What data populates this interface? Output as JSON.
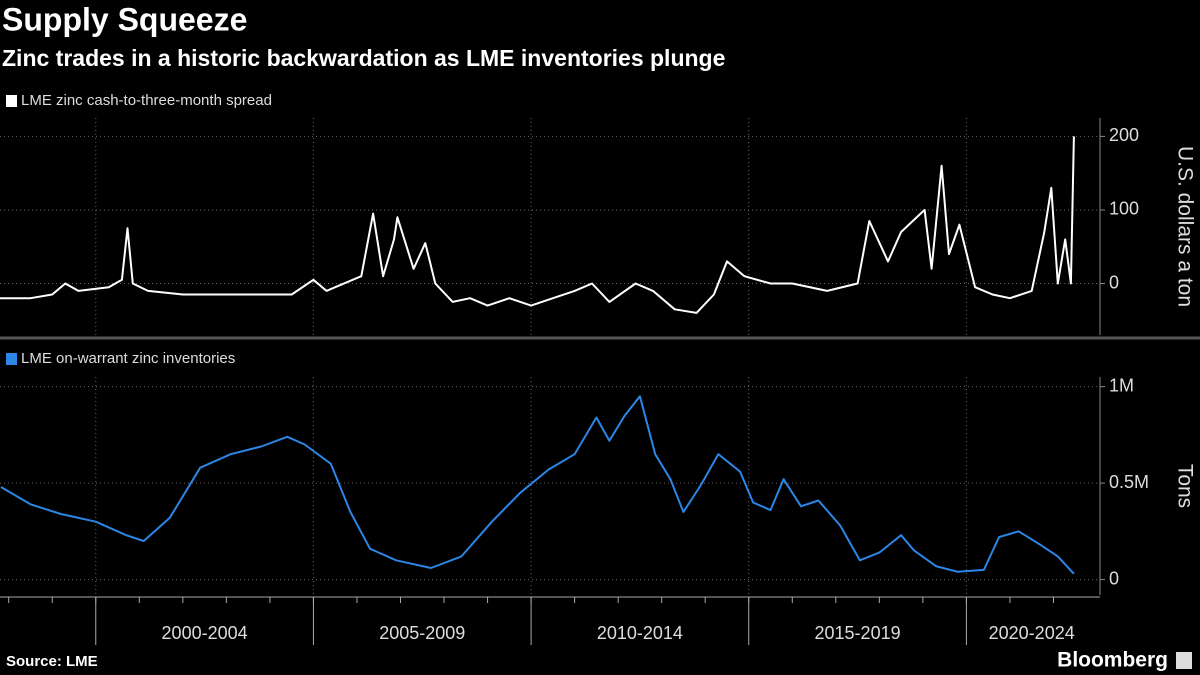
{
  "header": {
    "title": "Supply Squeeze",
    "subtitle": "Zinc trades in a historic backwardation as LME inventories plunge"
  },
  "chart_data": [
    {
      "type": "line",
      "ylabel": "U.S. dollars a ton",
      "xlim": [
        1997.8,
        2023.0
      ],
      "ylim": [
        -70,
        225
      ],
      "yticks": [
        0,
        100,
        200
      ],
      "grid": true,
      "x": [
        1997.8,
        1998.5,
        1999.0,
        1999.3,
        1999.6,
        2000.3,
        2000.6,
        2000.73,
        2000.85,
        2001.2,
        2002.0,
        2003.0,
        2004.0,
        2004.5,
        2005.0,
        2005.3,
        2005.5,
        2006.1,
        2006.37,
        2006.6,
        2006.85,
        2006.93,
        2007.3,
        2007.57,
        2007.8,
        2008.2,
        2008.6,
        2009.0,
        2009.5,
        2010.0,
        2010.5,
        2011.0,
        2011.4,
        2011.8,
        2012.4,
        2012.8,
        2013.3,
        2013.8,
        2014.2,
        2014.5,
        2014.9,
        2015.5,
        2016.0,
        2016.8,
        2017.5,
        2017.77,
        2018.2,
        2018.5,
        2019.04,
        2019.2,
        2019.43,
        2019.6,
        2019.84,
        2020.2,
        2020.6,
        2021.0,
        2021.5,
        2021.79,
        2021.95,
        2022.1,
        2022.27,
        2022.4,
        2022.47
      ],
      "series": [
        {
          "name": "LME zinc cash-to-three-month spread",
          "color": "#ffffff",
          "values": [
            -20,
            -20,
            -15,
            0,
            -10,
            -5,
            5,
            75,
            0,
            -10,
            -15,
            -15,
            -15,
            -15,
            5,
            -10,
            -5,
            10,
            95,
            10,
            60,
            90,
            20,
            55,
            0,
            -25,
            -20,
            -30,
            -20,
            -30,
            -20,
            -10,
            0,
            -25,
            0,
            -10,
            -35,
            -40,
            -15,
            30,
            10,
            0,
            0,
            -10,
            0,
            85,
            30,
            70,
            100,
            20,
            160,
            40,
            80,
            -5,
            -15,
            -20,
            -10,
            70,
            130,
            0,
            60,
            0,
            200
          ]
        }
      ]
    },
    {
      "type": "line",
      "ylabel": "Tons",
      "xlim": [
        1997.8,
        2023.0
      ],
      "ylim": [
        -80000,
        1050000
      ],
      "yticks": [
        0,
        {
          "value": 500000,
          "label": "0.5M"
        },
        {
          "value": 1000000,
          "label": "1M"
        }
      ],
      "grid": true,
      "periods": [
        {
          "label": "2000-2004",
          "start": 2000,
          "end": 2005
        },
        {
          "label": "2005-2009",
          "start": 2005,
          "end": 2010
        },
        {
          "label": "2010-2014",
          "start": 2010,
          "end": 2015
        },
        {
          "label": "2015-2019",
          "start": 2015,
          "end": 2020
        },
        {
          "label": "2020-2024",
          "start": 2020,
          "end": 2025
        }
      ],
      "minor_xticks": [
        1998,
        1999,
        2000,
        2001,
        2002,
        2003,
        2004,
        2005,
        2006,
        2007,
        2008,
        2009,
        2010,
        2011,
        2012,
        2013,
        2014,
        2015,
        2016,
        2017,
        2018,
        2019,
        2020,
        2021,
        2022
      ],
      "x": [
        1997.82,
        1998.5,
        1999.2,
        2000.0,
        2000.7,
        2001.1,
        2001.7,
        2002.4,
        2003.1,
        2003.8,
        2004.4,
        2004.8,
        2005.4,
        2005.85,
        2006.3,
        2006.9,
        2007.7,
        2008.4,
        2009.1,
        2009.75,
        2010.4,
        2011.0,
        2011.5,
        2011.8,
        2012.15,
        2012.5,
        2012.85,
        2013.2,
        2013.5,
        2013.9,
        2014.3,
        2014.8,
        2015.1,
        2015.5,
        2015.8,
        2016.2,
        2016.6,
        2017.1,
        2017.55,
        2018.0,
        2018.5,
        2018.8,
        2019.3,
        2019.8,
        2020.4,
        2020.75,
        2021.2,
        2021.7,
        2022.1,
        2022.47
      ],
      "series": [
        {
          "name": "LME on-warrant zinc inventories",
          "color": "#2b86e6",
          "values": [
            480000,
            390000,
            340000,
            300000,
            230000,
            200000,
            320000,
            580000,
            650000,
            690000,
            740000,
            700000,
            600000,
            350000,
            160000,
            100000,
            60000,
            120000,
            300000,
            450000,
            570000,
            650000,
            840000,
            720000,
            850000,
            950000,
            650000,
            520000,
            350000,
            490000,
            650000,
            560000,
            400000,
            360000,
            520000,
            380000,
            410000,
            280000,
            100000,
            140000,
            230000,
            150000,
            70000,
            40000,
            50000,
            220000,
            250000,
            180000,
            120000,
            30000
          ]
        }
      ]
    }
  ],
  "footer": {
    "source": "Source: LME",
    "brand": "Bloomberg"
  }
}
